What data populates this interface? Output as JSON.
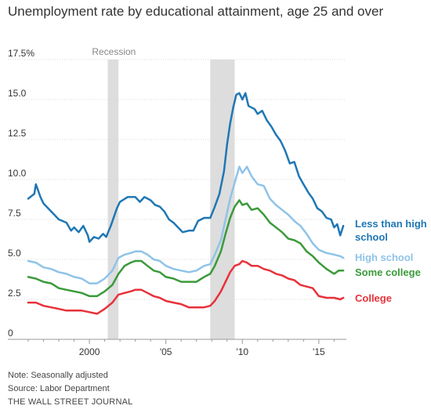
{
  "chart_data": {
    "type": "line",
    "title": "Unemployment rate by educational attainment, age 25 and over",
    "ylim": [
      0,
      17.5
    ],
    "y_ticks": [
      "0",
      "2.5",
      "5.0",
      "7.5",
      "10.0",
      "12.5",
      "15.0",
      "17.5%"
    ],
    "y_tick_values": [
      0,
      2.5,
      5,
      7.5,
      10,
      12.5,
      15,
      17.5
    ],
    "xlim": [
      1996.0,
      2016.8
    ],
    "x_ticks": [
      "2000",
      "'05",
      "'10",
      "'15"
    ],
    "x_tick_values": [
      2000,
      2005,
      2010,
      2015
    ],
    "grid": "horizontal",
    "recessions": [
      {
        "label": "Recession",
        "start": 2001.2,
        "end": 2001.9
      },
      {
        "label": "",
        "start": 2007.9,
        "end": 2009.5
      }
    ],
    "series": [
      {
        "name": "Less than high school",
        "color": "#1f77b4",
        "points": [
          [
            1996.0,
            8.8
          ],
          [
            1996.4,
            9.1
          ],
          [
            1996.5,
            9.7
          ],
          [
            1996.8,
            8.9
          ],
          [
            1997.0,
            8.5
          ],
          [
            1997.3,
            8.2
          ],
          [
            1997.7,
            7.8
          ],
          [
            1998.0,
            7.5
          ],
          [
            1998.5,
            7.3
          ],
          [
            1998.8,
            6.8
          ],
          [
            1999.0,
            7.0
          ],
          [
            1999.3,
            6.7
          ],
          [
            1999.6,
            7.1
          ],
          [
            1999.9,
            6.5
          ],
          [
            2000.0,
            6.1
          ],
          [
            2000.3,
            6.4
          ],
          [
            2000.6,
            6.3
          ],
          [
            2000.9,
            6.6
          ],
          [
            2001.1,
            6.4
          ],
          [
            2001.4,
            7.1
          ],
          [
            2001.8,
            8.2
          ],
          [
            2002.0,
            8.6
          ],
          [
            2002.5,
            8.9
          ],
          [
            2003.0,
            8.9
          ],
          [
            2003.3,
            8.6
          ],
          [
            2003.6,
            8.9
          ],
          [
            2004.0,
            8.7
          ],
          [
            2004.3,
            8.4
          ],
          [
            2004.6,
            8.3
          ],
          [
            2004.9,
            8.0
          ],
          [
            2005.2,
            7.5
          ],
          [
            2005.5,
            7.3
          ],
          [
            2005.8,
            7.0
          ],
          [
            2006.1,
            6.7
          ],
          [
            2006.5,
            6.8
          ],
          [
            2006.8,
            6.8
          ],
          [
            2007.1,
            7.4
          ],
          [
            2007.5,
            7.6
          ],
          [
            2007.9,
            7.6
          ],
          [
            2008.2,
            8.3
          ],
          [
            2008.5,
            9.1
          ],
          [
            2008.8,
            10.5
          ],
          [
            2009.0,
            12.2
          ],
          [
            2009.2,
            13.5
          ],
          [
            2009.4,
            14.5
          ],
          [
            2009.6,
            15.3
          ],
          [
            2009.8,
            15.4
          ],
          [
            2010.0,
            15.0
          ],
          [
            2010.2,
            15.4
          ],
          [
            2010.4,
            14.6
          ],
          [
            2010.6,
            14.5
          ],
          [
            2010.8,
            14.4
          ],
          [
            2011.0,
            14.1
          ],
          [
            2011.3,
            14.3
          ],
          [
            2011.6,
            13.7
          ],
          [
            2011.9,
            13.3
          ],
          [
            2012.2,
            12.8
          ],
          [
            2012.5,
            12.4
          ],
          [
            2012.8,
            11.8
          ],
          [
            2013.1,
            11.0
          ],
          [
            2013.4,
            11.1
          ],
          [
            2013.7,
            10.2
          ],
          [
            2014.0,
            9.7
          ],
          [
            2014.3,
            9.2
          ],
          [
            2014.6,
            8.8
          ],
          [
            2014.9,
            8.2
          ],
          [
            2015.2,
            8.0
          ],
          [
            2015.5,
            7.6
          ],
          [
            2015.8,
            7.5
          ],
          [
            2016.0,
            7.0
          ],
          [
            2016.2,
            7.2
          ],
          [
            2016.4,
            6.5
          ],
          [
            2016.6,
            7.1
          ]
        ]
      },
      {
        "name": "High school",
        "color": "#8fc3e8",
        "points": [
          [
            1996.0,
            4.9
          ],
          [
            1996.5,
            4.8
          ],
          [
            1997.0,
            4.5
          ],
          [
            1997.5,
            4.4
          ],
          [
            1998.0,
            4.2
          ],
          [
            1998.5,
            4.1
          ],
          [
            1999.0,
            3.9
          ],
          [
            1999.5,
            3.8
          ],
          [
            2000.0,
            3.5
          ],
          [
            2000.5,
            3.5
          ],
          [
            2001.0,
            3.8
          ],
          [
            2001.5,
            4.3
          ],
          [
            2001.9,
            5.1
          ],
          [
            2002.3,
            5.3
          ],
          [
            2002.7,
            5.4
          ],
          [
            2003.0,
            5.5
          ],
          [
            2003.4,
            5.5
          ],
          [
            2003.8,
            5.3
          ],
          [
            2004.2,
            5.0
          ],
          [
            2004.6,
            4.9
          ],
          [
            2005.0,
            4.6
          ],
          [
            2005.5,
            4.4
          ],
          [
            2006.0,
            4.3
          ],
          [
            2006.5,
            4.2
          ],
          [
            2007.0,
            4.3
          ],
          [
            2007.5,
            4.6
          ],
          [
            2007.9,
            4.7
          ],
          [
            2008.2,
            5.3
          ],
          [
            2008.6,
            6.2
          ],
          [
            2008.9,
            7.5
          ],
          [
            2009.2,
            8.8
          ],
          [
            2009.5,
            9.8
          ],
          [
            2009.8,
            10.8
          ],
          [
            2010.0,
            10.4
          ],
          [
            2010.3,
            10.8
          ],
          [
            2010.6,
            10.2
          ],
          [
            2011.0,
            9.7
          ],
          [
            2011.4,
            9.6
          ],
          [
            2011.8,
            8.8
          ],
          [
            2012.2,
            8.4
          ],
          [
            2012.6,
            8.1
          ],
          [
            2013.0,
            7.8
          ],
          [
            2013.4,
            7.4
          ],
          [
            2013.8,
            7.1
          ],
          [
            2014.2,
            6.6
          ],
          [
            2014.6,
            6.0
          ],
          [
            2015.0,
            5.6
          ],
          [
            2015.5,
            5.4
          ],
          [
            2016.0,
            5.3
          ],
          [
            2016.4,
            5.2
          ],
          [
            2016.6,
            5.1
          ]
        ]
      },
      {
        "name": "Some college",
        "color": "#3a9a3a",
        "points": [
          [
            1996.0,
            3.9
          ],
          [
            1996.5,
            3.8
          ],
          [
            1997.0,
            3.6
          ],
          [
            1997.5,
            3.5
          ],
          [
            1998.0,
            3.2
          ],
          [
            1998.5,
            3.1
          ],
          [
            1999.0,
            3.0
          ],
          [
            1999.5,
            2.9
          ],
          [
            2000.0,
            2.7
          ],
          [
            2000.5,
            2.7
          ],
          [
            2001.0,
            3.0
          ],
          [
            2001.5,
            3.4
          ],
          [
            2001.9,
            4.1
          ],
          [
            2002.3,
            4.6
          ],
          [
            2002.7,
            4.8
          ],
          [
            2003.0,
            4.9
          ],
          [
            2003.4,
            4.9
          ],
          [
            2003.8,
            4.6
          ],
          [
            2004.2,
            4.3
          ],
          [
            2004.6,
            4.2
          ],
          [
            2005.0,
            3.9
          ],
          [
            2005.5,
            3.8
          ],
          [
            2006.0,
            3.6
          ],
          [
            2006.5,
            3.6
          ],
          [
            2007.0,
            3.6
          ],
          [
            2007.5,
            3.9
          ],
          [
            2007.9,
            4.1
          ],
          [
            2008.2,
            4.6
          ],
          [
            2008.6,
            5.5
          ],
          [
            2008.9,
            6.6
          ],
          [
            2009.2,
            7.6
          ],
          [
            2009.5,
            8.3
          ],
          [
            2009.8,
            8.7
          ],
          [
            2010.0,
            8.4
          ],
          [
            2010.3,
            8.5
          ],
          [
            2010.6,
            8.1
          ],
          [
            2011.0,
            8.2
          ],
          [
            2011.4,
            7.8
          ],
          [
            2011.8,
            7.3
          ],
          [
            2012.2,
            7.0
          ],
          [
            2012.6,
            6.7
          ],
          [
            2013.0,
            6.3
          ],
          [
            2013.4,
            6.2
          ],
          [
            2013.8,
            6.0
          ],
          [
            2014.2,
            5.5
          ],
          [
            2014.6,
            5.2
          ],
          [
            2015.0,
            4.8
          ],
          [
            2015.5,
            4.4
          ],
          [
            2016.0,
            4.1
          ],
          [
            2016.3,
            4.3
          ],
          [
            2016.6,
            4.3
          ]
        ]
      },
      {
        "name": "College",
        "color": "#e8313a",
        "points": [
          [
            1996.0,
            2.3
          ],
          [
            1996.5,
            2.3
          ],
          [
            1997.0,
            2.1
          ],
          [
            1997.5,
            2.0
          ],
          [
            1998.0,
            1.9
          ],
          [
            1998.5,
            1.8
          ],
          [
            1999.0,
            1.8
          ],
          [
            1999.5,
            1.8
          ],
          [
            2000.0,
            1.7
          ],
          [
            2000.5,
            1.6
          ],
          [
            2001.0,
            1.9
          ],
          [
            2001.5,
            2.3
          ],
          [
            2001.9,
            2.8
          ],
          [
            2002.3,
            2.9
          ],
          [
            2002.7,
            3.0
          ],
          [
            2003.0,
            3.1
          ],
          [
            2003.4,
            3.1
          ],
          [
            2003.8,
            2.9
          ],
          [
            2004.2,
            2.7
          ],
          [
            2004.6,
            2.6
          ],
          [
            2005.0,
            2.4
          ],
          [
            2005.5,
            2.3
          ],
          [
            2006.0,
            2.2
          ],
          [
            2006.5,
            2.0
          ],
          [
            2007.0,
            2.0
          ],
          [
            2007.5,
            2.0
          ],
          [
            2007.9,
            2.1
          ],
          [
            2008.2,
            2.4
          ],
          [
            2008.6,
            3.0
          ],
          [
            2008.9,
            3.6
          ],
          [
            2009.2,
            4.2
          ],
          [
            2009.5,
            4.6
          ],
          [
            2009.8,
            4.7
          ],
          [
            2010.0,
            4.9
          ],
          [
            2010.3,
            4.8
          ],
          [
            2010.6,
            4.6
          ],
          [
            2011.0,
            4.6
          ],
          [
            2011.4,
            4.4
          ],
          [
            2011.8,
            4.3
          ],
          [
            2012.2,
            4.1
          ],
          [
            2012.6,
            4.0
          ],
          [
            2013.0,
            3.8
          ],
          [
            2013.4,
            3.7
          ],
          [
            2013.8,
            3.4
          ],
          [
            2014.2,
            3.3
          ],
          [
            2014.6,
            3.2
          ],
          [
            2015.0,
            2.7
          ],
          [
            2015.5,
            2.6
          ],
          [
            2016.0,
            2.6
          ],
          [
            2016.4,
            2.5
          ],
          [
            2016.6,
            2.6
          ]
        ]
      }
    ],
    "legend": [
      "Less than high",
      "school",
      "High school",
      "Some college",
      "College"
    ]
  },
  "footer": {
    "note": "Note: Seasonally adjusted",
    "source": "Source: Labor Department",
    "brand": "THE WALL STREET JOURNAL"
  }
}
